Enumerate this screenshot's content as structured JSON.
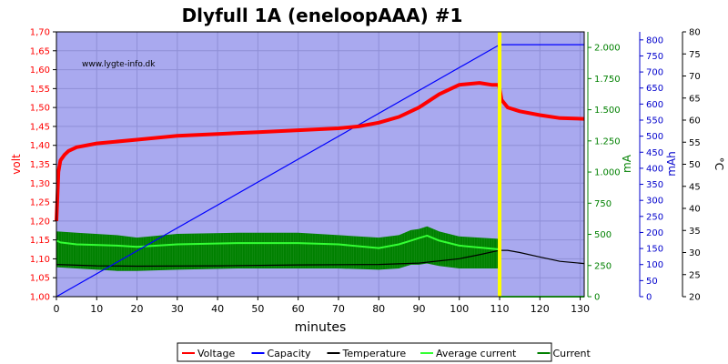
{
  "chart_data": {
    "type": "line",
    "title": "Dlyfull 1A (eneloopAAA) #1",
    "watermark": "www.lygte-info.dk",
    "xlabel": "minutes",
    "xlim": [
      0,
      131
    ],
    "x_ticks": [
      "0",
      "10",
      "20",
      "30",
      "40",
      "50",
      "60",
      "70",
      "80",
      "90",
      "100",
      "110",
      "120",
      "130"
    ],
    "axes": {
      "volt": {
        "label": "volt",
        "color": "#ff0000",
        "ylim": [
          1.0,
          1.7
        ],
        "ticks": [
          "1,00",
          "1,05",
          "1,10",
          "1,15",
          "1,20",
          "1,25",
          "1,30",
          "1,35",
          "1,40",
          "1,45",
          "1,50",
          "1,55",
          "1,60",
          "1,65",
          "1,70"
        ]
      },
      "mA": {
        "label": "mA",
        "color": "#008000",
        "ylim": [
          0,
          2125
        ],
        "ticks": [
          "0",
          "250",
          "500",
          "750",
          "1.000",
          "1.250",
          "1.500",
          "1.750",
          "2.000"
        ]
      },
      "mAh": {
        "label": "mAh",
        "color": "#0000cc",
        "ylim": [
          0,
          825
        ],
        "ticks": [
          "0",
          "50",
          "100",
          "150",
          "200",
          "250",
          "300",
          "350",
          "400",
          "450",
          "500",
          "550",
          "600",
          "650",
          "700",
          "750",
          "800"
        ]
      },
      "temp": {
        "label": "°C",
        "color": "#000000",
        "ylim": [
          20,
          80
        ],
        "ticks": [
          "20",
          "25",
          "30",
          "35",
          "40",
          "45",
          "50",
          "55",
          "60",
          "65",
          "70",
          "75",
          "80"
        ]
      }
    },
    "marker_x": 110,
    "marker_color": "#ffff00",
    "series": [
      {
        "name": "Voltage",
        "axis": "volt",
        "color": "#ff0000",
        "x": [
          0,
          0.5,
          1,
          2,
          3,
          5,
          10,
          20,
          30,
          40,
          50,
          60,
          70,
          75,
          80,
          85,
          90,
          95,
          100,
          105,
          108,
          109.8,
          110,
          110.5,
          112,
          115,
          120,
          125,
          131
        ],
        "y": [
          1.2,
          1.33,
          1.36,
          1.375,
          1.385,
          1.395,
          1.405,
          1.415,
          1.425,
          1.43,
          1.435,
          1.44,
          1.445,
          1.45,
          1.46,
          1.475,
          1.5,
          1.535,
          1.56,
          1.565,
          1.56,
          1.56,
          1.55,
          1.52,
          1.5,
          1.49,
          1.48,
          1.472,
          1.47
        ]
      },
      {
        "name": "Capacity",
        "axis": "mAh",
        "color": "#0000ff",
        "x": [
          0,
          110,
          131
        ],
        "y": [
          0,
          785,
          785
        ]
      },
      {
        "name": "Temperature",
        "axis": "temp",
        "color": "#000000",
        "x": [
          0,
          10,
          20,
          40,
          60,
          80,
          90,
          100,
          105,
          110,
          112,
          115,
          120,
          125,
          131
        ],
        "y": [
          27.3,
          27.0,
          26.9,
          27.0,
          27.2,
          27.3,
          27.6,
          28.6,
          29.5,
          30.5,
          30.5,
          30.0,
          29.0,
          28.0,
          27.5
        ]
      },
      {
        "name": "Average current",
        "axis": "mA",
        "color": "#33ff33",
        "x": [
          0,
          1,
          5,
          15,
          20,
          30,
          45,
          60,
          70,
          80,
          85,
          88,
          90,
          92,
          95,
          100,
          109.8,
          110,
          131
        ],
        "y": [
          450,
          435,
          420,
          410,
          400,
          420,
          430,
          430,
          420,
          390,
          420,
          450,
          470,
          490,
          450,
          410,
          380,
          0,
          0
        ]
      },
      {
        "name": "Current",
        "axis": "mA",
        "color": "#008000",
        "band": true,
        "x": [
          0,
          5,
          15,
          20,
          30,
          45,
          60,
          70,
          80,
          85,
          88,
          90,
          92,
          95,
          100,
          109.8
        ],
        "upper": [
          520,
          510,
          490,
          470,
          500,
          510,
          510,
          490,
          470,
          490,
          530,
          540,
          560,
          520,
          480,
          460
        ],
        "lower": [
          240,
          230,
          210,
          210,
          220,
          230,
          230,
          230,
          220,
          230,
          260,
          260,
          270,
          250,
          230,
          230
        ]
      }
    ],
    "legend": [
      "Voltage",
      "Capacity",
      "Temperature",
      "Average current",
      "Current"
    ],
    "legend_position": "bottom",
    "grid": true
  }
}
